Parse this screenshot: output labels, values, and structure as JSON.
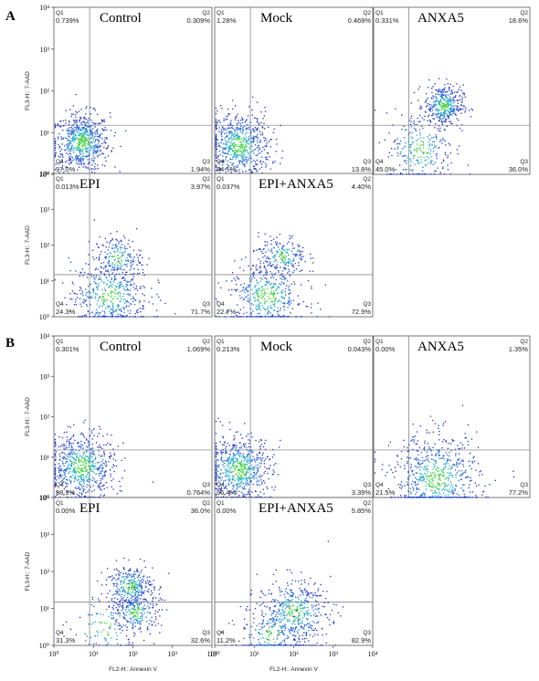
{
  "figure": {
    "panel_letters": [
      "A",
      "B"
    ]
  },
  "chart_data": [
    {
      "panel": "A",
      "title": "Control",
      "type": "scatter",
      "quadrants": {
        "Q1": "0.739%",
        "Q2": "0.309%",
        "Q3": "1.94%",
        "Q4": "97.0%"
      },
      "quadrant_names": [
        "Q1",
        "Q2",
        "Q3",
        "Q4"
      ],
      "clusters": [
        {
          "x": 5,
          "y": 6,
          "spread": 0.35,
          "weight": 1
        }
      ],
      "ylabel": "FL3-H:: 7-AAD",
      "xlabel": "",
      "y_ticks": [
        "10⁰",
        "10¹",
        "10²",
        "10³",
        "10⁴"
      ],
      "x_ticks": [],
      "xlim": [
        1,
        10000
      ],
      "ylim": [
        1,
        10000
      ],
      "scale": "log",
      "colors": [
        "#1a2fc4",
        "#1aa8c8",
        "#3fd23f",
        "#e6e632"
      ]
    },
    {
      "panel": "A",
      "title": "Mock",
      "type": "scatter",
      "quadrants": {
        "Q1": "1.28%",
        "Q2": "0.469%",
        "Q3": "13.8%",
        "Q4": "84.5%"
      },
      "quadrant_names": [
        "Q1",
        "Q2",
        "Q3",
        "Q4"
      ],
      "clusters": [
        {
          "x": 4,
          "y": 5,
          "spread": 0.4,
          "weight": 1
        }
      ],
      "ylabel": "",
      "xlabel": "",
      "y_ticks": [],
      "x_ticks": [],
      "xlim": [
        1,
        10000
      ],
      "ylim": [
        1,
        10000
      ],
      "scale": "log"
    },
    {
      "panel": "A",
      "title": "ANXA5",
      "type": "scatter",
      "quadrants": {
        "Q1": "0.331%",
        "Q2": "18.6%",
        "Q3": "36.0%",
        "Q4": "45.0%"
      },
      "quadrant_names": [
        "Q1",
        "Q2",
        "Q3",
        "Q4"
      ],
      "clusters": [
        {
          "x": 60,
          "y": 45,
          "spread": 0.25,
          "weight": 0.6
        },
        {
          "x": 15,
          "y": 4,
          "spread": 0.45,
          "weight": 0.4
        }
      ],
      "ylabel": "",
      "xlabel": "",
      "y_ticks": [],
      "x_ticks": [],
      "xlim": [
        1,
        10000
      ],
      "ylim": [
        1,
        10000
      ],
      "scale": "log"
    },
    {
      "panel": "A",
      "title": "EPI",
      "type": "scatter",
      "quadrants": {
        "Q1": "0.013%",
        "Q2": "3.97%",
        "Q3": "71.7%",
        "Q4": "24.3%"
      },
      "quadrant_names": [
        "Q1",
        "Q2",
        "Q3",
        "Q4"
      ],
      "clusters": [
        {
          "x": 40,
          "y": 45,
          "spread": 0.3,
          "weight": 0.3
        },
        {
          "x": 25,
          "y": 4,
          "spread": 0.5,
          "weight": 0.7
        }
      ],
      "ylabel": "FL3-H:: 7-AAD",
      "xlabel": "",
      "y_ticks": [
        "10⁰",
        "10¹",
        "10²",
        "10³",
        "10⁴"
      ],
      "x_ticks": [],
      "xlim": [
        1,
        10000
      ],
      "ylim": [
        1,
        10000
      ],
      "scale": "log"
    },
    {
      "panel": "A",
      "title": "EPI+ANXA5",
      "type": "scatter",
      "quadrants": {
        "Q1": "0.037%",
        "Q2": "4.40%",
        "Q3": "72.9%",
        "Q4": "22.7%"
      },
      "quadrant_names": [
        "Q1",
        "Q2",
        "Q3",
        "Q4"
      ],
      "clusters": [
        {
          "x": 50,
          "y": 50,
          "spread": 0.3,
          "weight": 0.3
        },
        {
          "x": 20,
          "y": 4,
          "spread": 0.5,
          "weight": 0.7
        }
      ],
      "ylabel": "",
      "xlabel": "",
      "y_ticks": [],
      "x_ticks": [],
      "xlim": [
        1,
        10000
      ],
      "ylim": [
        1,
        10000
      ],
      "scale": "log"
    },
    {
      "panel": "B",
      "title": "Control",
      "type": "scatter",
      "quadrants": {
        "Q1": "0.301%",
        "Q2": "1.069%",
        "Q3": "0.764%",
        "Q4": "98.9%"
      },
      "quadrant_names": [
        "Q1",
        "Q2",
        "Q3",
        "Q4"
      ],
      "clusters": [
        {
          "x": 5,
          "y": 6,
          "spread": 0.42,
          "weight": 1
        }
      ],
      "ylabel": "FL3-H:: 7-AAD",
      "xlabel": "",
      "y_ticks": [
        "10⁰",
        "10¹",
        "10²",
        "10³",
        "10⁴"
      ],
      "x_ticks": [],
      "xlim": [
        1,
        10000
      ],
      "ylim": [
        1,
        10000
      ],
      "scale": "log"
    },
    {
      "panel": "B",
      "title": "Mock",
      "type": "scatter",
      "quadrants": {
        "Q1": "0.213%",
        "Q2": "0.043%",
        "Q3": "3.39%",
        "Q4": "96.4%"
      },
      "quadrant_names": [
        "Q1",
        "Q2",
        "Q3",
        "Q4"
      ],
      "clusters": [
        {
          "x": 4,
          "y": 5,
          "spread": 0.42,
          "weight": 1
        }
      ],
      "ylabel": "",
      "xlabel": "",
      "y_ticks": [],
      "x_ticks": [],
      "xlim": [
        1,
        10000
      ],
      "ylim": [
        1,
        10000
      ],
      "scale": "log"
    },
    {
      "panel": "B",
      "title": "ANXA5",
      "type": "scatter",
      "quadrants": {
        "Q1": "0.00%",
        "Q2": "1.35%",
        "Q3": "77.2%",
        "Q4": "21.5%"
      },
      "quadrant_names": [
        "Q1",
        "Q2",
        "Q3",
        "Q4"
      ],
      "clusters": [
        {
          "x": 40,
          "y": 3,
          "spread": 0.55,
          "weight": 1
        }
      ],
      "ylabel": "",
      "xlabel": "",
      "y_ticks": [],
      "x_ticks": [],
      "xlim": [
        1,
        10000
      ],
      "ylim": [
        1,
        10000
      ],
      "scale": "log"
    },
    {
      "panel": "B",
      "title": "EPI",
      "type": "scatter",
      "quadrants": {
        "Q1": "0.00%",
        "Q2": "36.0%",
        "Q3": "32.6%",
        "Q4": "31.3%"
      },
      "quadrant_names": [
        "Q1",
        "Q2",
        "Q3",
        "Q4"
      ],
      "clusters": [
        {
          "x": 80,
          "y": 40,
          "spread": 0.3,
          "weight": 0.5
        },
        {
          "x": 120,
          "y": 8,
          "spread": 0.3,
          "weight": 0.35
        },
        {
          "x": 20,
          "y": 3,
          "spread": 0.45,
          "weight": 0.15
        }
      ],
      "ylabel": "FL3-H:: 7-AAD",
      "xlabel": "FL2-H:: Annexin V",
      "y_ticks": [
        "10⁰",
        "10¹",
        "10²",
        "10³",
        "10⁴"
      ],
      "x_ticks": [
        "10⁰",
        "10¹",
        "10²",
        "10³",
        "10⁴"
      ],
      "xlim": [
        1,
        10000
      ],
      "ylim": [
        1,
        10000
      ],
      "scale": "log"
    },
    {
      "panel": "B",
      "title": "EPI+ANXA5",
      "type": "scatter",
      "quadrants": {
        "Q1": "0.00%",
        "Q2": "5.85%",
        "Q3": "82.9%",
        "Q4": "11.2%"
      },
      "quadrant_names": [
        "Q1",
        "Q2",
        "Q3",
        "Q4"
      ],
      "clusters": [
        {
          "x": 100,
          "y": 8,
          "spread": 0.45,
          "weight": 0.7
        },
        {
          "x": 30,
          "y": 2,
          "spread": 0.45,
          "weight": 0.3
        }
      ],
      "ylabel": "",
      "xlabel": "FL2-H:: Annexin V",
      "y_ticks": [],
      "x_ticks": [
        "10⁰",
        "10¹",
        "10²",
        "10³",
        "10⁴"
      ],
      "xlim": [
        1,
        10000
      ],
      "ylim": [
        1,
        10000
      ],
      "scale": "log"
    }
  ]
}
